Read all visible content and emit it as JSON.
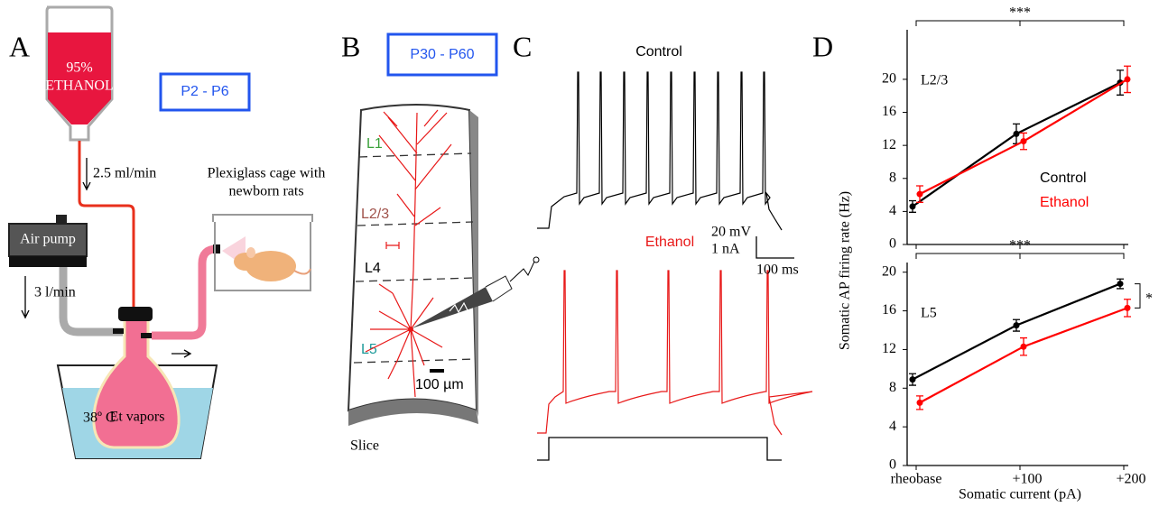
{
  "panel_a": {
    "label": "A",
    "bottle": [
      "95%",
      "ETHANOL"
    ],
    "age_box": "P2 - P6",
    "flow_ethanol": "2.5 ml/min",
    "cage": [
      "Plexiglass cage with",
      "newborn rats"
    ],
    "pump": "Air pump",
    "flow_air": "3 l/min",
    "flask": "Et vapors",
    "bath": "38º C"
  },
  "panel_b": {
    "label": "B",
    "age_box": "P30 - P60",
    "layers": [
      "L1",
      "L2/3",
      "L4",
      "L5"
    ],
    "scale": "100 µm",
    "slice": "Slice"
  },
  "panel_c": {
    "label": "C",
    "control": "Control",
    "ethanol": "Ethanol",
    "scale_v": "20 mV",
    "scale_i": "1 nA",
    "scale_t": "100 ms"
  },
  "panel_d": {
    "label": "D",
    "y_label": "Somatic AP firing rate (Hz)",
    "x_label": "Somatic current (pA)"
  },
  "chart_data": [
    {
      "type": "line",
      "title": "L2/3",
      "annotations": [
        "***"
      ],
      "ylim": [
        0,
        26
      ],
      "yticks": [
        0,
        4,
        8,
        12,
        16,
        20
      ],
      "series": [
        {
          "name": "Control",
          "color": "#000000",
          "values": [
            4.6,
            13.4,
            19.6
          ],
          "errors": [
            0.7,
            1.2,
            1.5
          ]
        },
        {
          "name": "Ethanol",
          "color": "#ff0000",
          "values": [
            6.1,
            12.5,
            20.0
          ],
          "errors": [
            1.0,
            1.0,
            1.6
          ]
        }
      ]
    },
    {
      "type": "line",
      "title": "L5",
      "annotations": [
        "***",
        "*"
      ],
      "categories": [
        "rheobase",
        "+100",
        "+200"
      ],
      "ylim": [
        0,
        21
      ],
      "yticks": [
        0,
        4,
        8,
        12,
        16,
        20
      ],
      "series": [
        {
          "color": "#000000",
          "values": [
            8.9,
            14.5,
            18.8
          ],
          "errors": [
            0.6,
            0.6,
            0.5
          ]
        },
        {
          "color": "#ff0000",
          "values": [
            6.5,
            12.3,
            16.3
          ],
          "errors": [
            0.7,
            0.9,
            0.9
          ]
        }
      ]
    }
  ]
}
